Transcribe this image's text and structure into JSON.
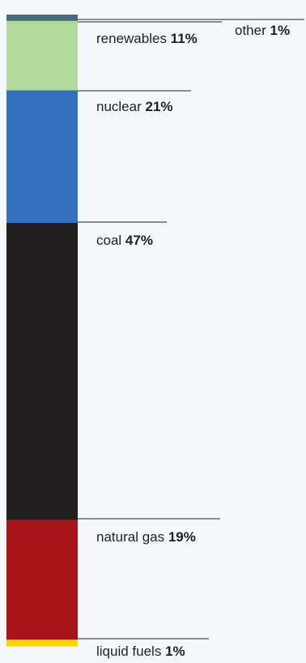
{
  "chart_data": {
    "type": "bar",
    "stacked": true,
    "unit": "%",
    "segments": [
      {
        "name": "other",
        "value": 1,
        "value_label": "1%",
        "color": "#4a6b7c"
      },
      {
        "name": "renewables",
        "value": 11,
        "value_label": "11%",
        "color": "#b3d99b"
      },
      {
        "name": "nuclear",
        "value": 21,
        "value_label": "21%",
        "color": "#3470bd"
      },
      {
        "name": "coal",
        "value": 47,
        "value_label": "47%",
        "color": "#231f20"
      },
      {
        "name": "natural gas",
        "value": 19,
        "value_label": "19%",
        "color": "#a81519"
      },
      {
        "name": "liquid fuels",
        "value": 1,
        "value_label": "1%",
        "color": "#f5d60d"
      }
    ],
    "total": 100,
    "title": "",
    "xlabel": "",
    "ylabel": "",
    "legend": "none",
    "grid": false
  }
}
